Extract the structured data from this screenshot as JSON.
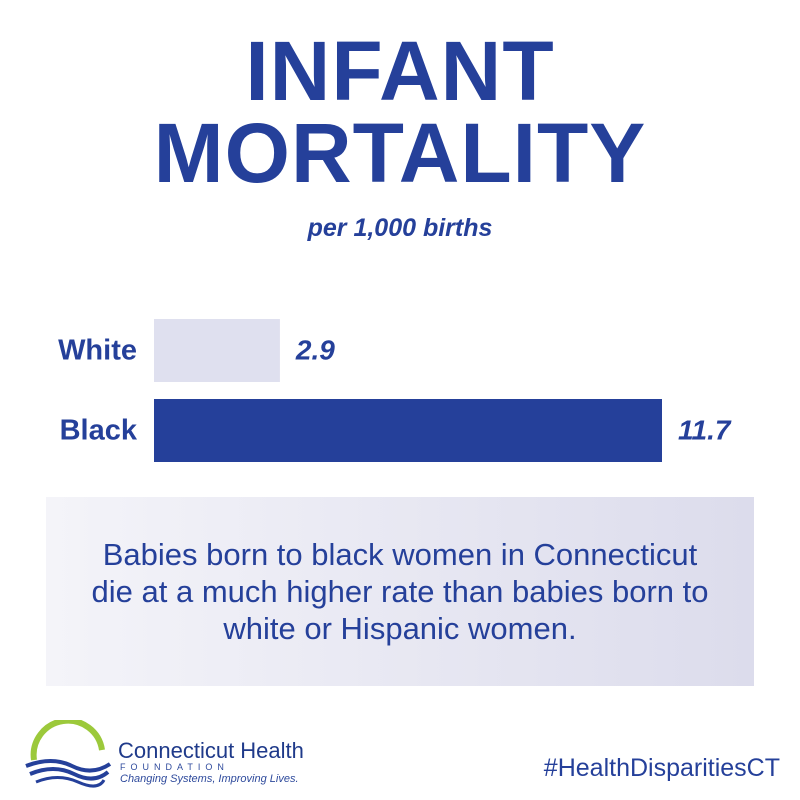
{
  "chart_data": {
    "type": "bar",
    "orientation": "horizontal",
    "title": "INFANT MORTALITY",
    "subtitle": "per 1,000 births",
    "categories": [
      "White",
      "Black"
    ],
    "values": [
      2.9,
      11.7
    ],
    "colors": [
      "#dfe0ef",
      "#25409a"
    ],
    "annotation": "Babies born to black women in Connecticut die at a much higher rate than babies born to white or Hispanic women."
  },
  "footer": {
    "logo_name": "Connecticut Health",
    "logo_sub": "FOUNDATION",
    "logo_tagline": "Changing Systems, Improving Lives.",
    "hashtag": "#HealthDisparitiesCT"
  }
}
